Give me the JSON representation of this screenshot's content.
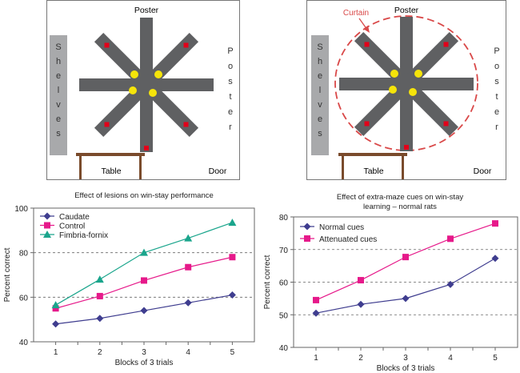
{
  "maze_left": {
    "top_label": "Poster",
    "right_label": "Poster",
    "left_label": "Shelves",
    "bottom_left_label": "Table",
    "bottom_right_label": "Door"
  },
  "maze_right": {
    "top_label": "Poster",
    "right_label": "Poster",
    "left_label": "Shelves",
    "bottom_left_label": "Table",
    "bottom_right_label": "Door",
    "curtain_label": "Curtain"
  },
  "colors": {
    "arm": "#5f6062",
    "shelves": "#a8a9ab",
    "food_yellow": "#f5e40a",
    "food_red": "#e2001a",
    "table": "#7a4b2c",
    "curtain": "#d94848",
    "grid": "#555555"
  },
  "chart_data": [
    {
      "type": "line",
      "title": "Effect of lesions on win-stay performance",
      "xlabel": "Blocks of 3 trials",
      "ylabel": "Percent correct",
      "x": [
        1,
        2,
        3,
        4,
        5
      ],
      "xticks": [
        "1",
        "2",
        "3",
        "4",
        "5"
      ],
      "ylim": [
        40,
        100
      ],
      "yticks": [
        "40",
        "60",
        "80",
        "100"
      ],
      "ytick_values": [
        40,
        60,
        80,
        100
      ],
      "legend_position": "top-left",
      "series": [
        {
          "name": "Caudate",
          "color": "#3f3d8f",
          "marker": "diamond",
          "values": [
            48,
            50.5,
            54,
            57.5,
            61
          ]
        },
        {
          "name": "Control",
          "color": "#e6198a",
          "marker": "square",
          "values": [
            55,
            60.5,
            67.5,
            73.5,
            78
          ]
        },
        {
          "name": "Fimbria-fornix",
          "color": "#1aa58c",
          "marker": "triangle",
          "values": [
            56.5,
            68,
            80,
            86.5,
            93.5
          ]
        }
      ]
    },
    {
      "type": "line",
      "title": "Effect of extra-maze cues on win-stay learning – normal rats",
      "title_lines": [
        "Effect of extra-maze cues on win-stay",
        "learning – normal rats"
      ],
      "xlabel": "Blocks of 3 trials",
      "ylabel": "Percent correct",
      "x": [
        1,
        2,
        3,
        4,
        5
      ],
      "xticks": [
        "1",
        "2",
        "3",
        "4",
        "5"
      ],
      "ylim": [
        40,
        80
      ],
      "yticks": [
        "40",
        "50",
        "60",
        "70",
        "80"
      ],
      "ytick_values": [
        40,
        50,
        60,
        70,
        80
      ],
      "legend_position": "top-left",
      "series": [
        {
          "name": "Normal cues",
          "color": "#3f3d8f",
          "marker": "diamond",
          "values": [
            50.5,
            53.2,
            55,
            59.3,
            67.3
          ]
        },
        {
          "name": "Attenuated cues",
          "color": "#e6198a",
          "marker": "square",
          "values": [
            54.5,
            60.6,
            67.7,
            73.3,
            78
          ]
        }
      ]
    }
  ]
}
